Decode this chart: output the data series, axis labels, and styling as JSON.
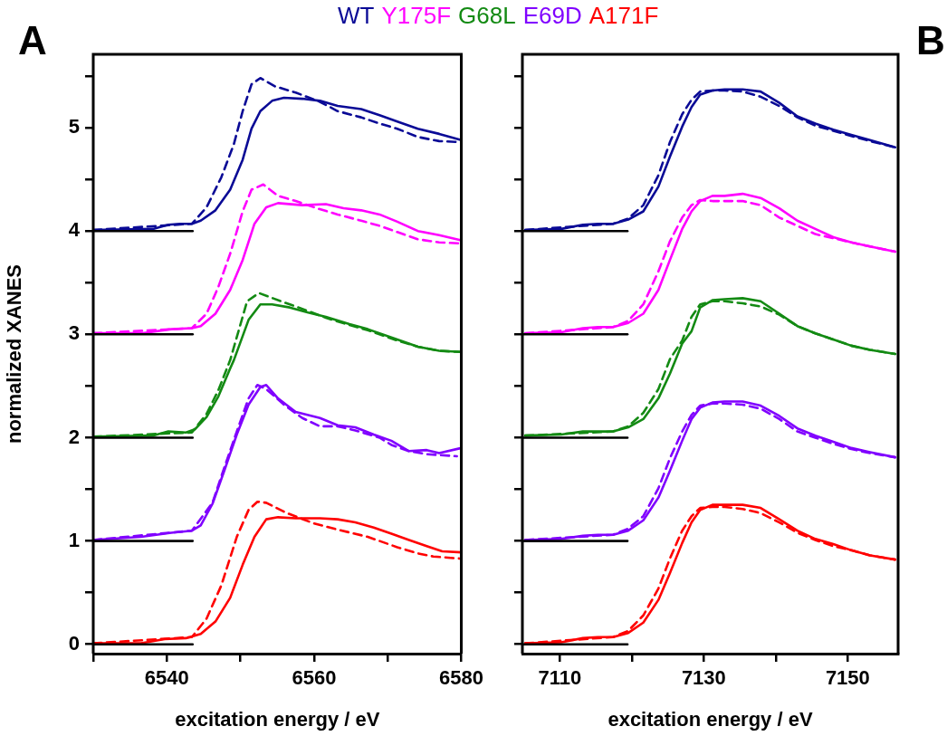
{
  "chart_data": [
    {
      "type": "line",
      "title": "A",
      "xlabel": "excitation energy / eV",
      "ylabel": "normalized XANES",
      "legend": "top",
      "xlim": [
        6530,
        6580
      ],
      "ylim": [
        -0.09,
        5.71
      ],
      "xticks": [
        {
          "value": 6530,
          "label": null
        },
        6540,
        {
          "value": 6550,
          "label": null
        },
        6560,
        {
          "value": 6570,
          "label": null
        },
        6580
      ],
      "yticks": [
        0,
        {
          "value": 0.5,
          "label": null
        },
        1,
        {
          "value": 1.5,
          "label": null
        },
        2,
        {
          "value": 2.5,
          "label": null
        },
        3,
        {
          "value": 3.5,
          "label": null
        },
        4,
        {
          "value": 4.5,
          "label": null
        },
        5,
        {
          "value": 5.5,
          "label": null
        }
      ],
      "series": [
        {
          "color": "#000000",
          "x": [
            6530,
            6543.5
          ],
          "values": [
            0,
            0
          ]
        },
        {
          "color": "#000000",
          "x": [
            6530,
            6543.5
          ],
          "values": [
            1,
            1
          ]
        },
        {
          "color": "#000000",
          "x": [
            6530,
            6543.5
          ],
          "values": [
            2,
            2
          ]
        },
        {
          "color": "#000000",
          "x": [
            6530,
            6543.5
          ],
          "values": [
            3,
            3
          ]
        },
        {
          "color": "#000000",
          "x": [
            6530,
            6543.5
          ],
          "values": [
            4,
            4
          ]
        },
        {
          "name": "WT",
          "color": "#0a0a96",
          "x": [
            6530,
            6538.1,
            6540.2,
            6541.8,
            6543.4,
            6544.6,
            6546.6,
            6548.6,
            6550.3,
            6551.5,
            6552.7,
            6554.3,
            6555.9,
            6558.4,
            6560.8,
            6563.2,
            6566.4,
            6568.9,
            6571.3,
            6574.1,
            6577,
            6580
          ],
          "values": [
            4.01,
            4.02,
            4.06,
            4.07,
            4.07,
            4.1,
            4.2,
            4.4,
            4.69,
            4.99,
            5.16,
            5.26,
            5.29,
            5.28,
            5.26,
            5.21,
            5.18,
            5.12,
            5.06,
            4.99,
            4.94,
            4.88
          ]
        },
        {
          "name": "Y175F",
          "color": "#ff00ff",
          "x": [
            6530,
            6536.5,
            6540.6,
            6543.4,
            6544.6,
            6546.6,
            6548.6,
            6550.3,
            6551.9,
            6553.5,
            6555.1,
            6558.4,
            6561.6,
            6564,
            6566.4,
            6568.9,
            6571.3,
            6574.1,
            6577,
            6580
          ],
          "values": [
            3.01,
            3.01,
            3.05,
            3.06,
            3.08,
            3.2,
            3.43,
            3.72,
            4.07,
            4.23,
            4.27,
            4.25,
            4.26,
            4.22,
            4.2,
            4.16,
            4.09,
            4,
            3.96,
            3.91
          ]
        },
        {
          "name": "G68L",
          "color": "#138a13",
          "x": [
            6530,
            6538.1,
            6540.2,
            6542.6,
            6543.8,
            6545.4,
            6547,
            6548.6,
            6549.1,
            6551.1,
            6552.7,
            6554.3,
            6556.7,
            6559.2,
            6561.6,
            6564.8,
            6567.3,
            6571.3,
            6574.1,
            6577,
            6580
          ],
          "values": [
            2.01,
            2.02,
            2.06,
            2.05,
            2.08,
            2.2,
            2.4,
            2.67,
            2.75,
            3.14,
            3.29,
            3.29,
            3.26,
            3.21,
            3.17,
            3.1,
            3.05,
            2.95,
            2.88,
            2.84,
            2.83
          ]
        },
        {
          "name": "E69D",
          "color": "#8000ff",
          "x": [
            6530,
            6536.5,
            6540.6,
            6543.4,
            6544.6,
            6546.2,
            6547.8,
            6549.5,
            6551.1,
            6552.7,
            6553.5,
            6555.1,
            6557.5,
            6560.8,
            6563.2,
            6565.6,
            6568.1,
            6570.5,
            6572.9,
            6575.3,
            6577,
            6580
          ],
          "values": [
            1.01,
            1.04,
            1.08,
            1.1,
            1.15,
            1.36,
            1.68,
            2.03,
            2.32,
            2.49,
            2.51,
            2.38,
            2.25,
            2.19,
            2.12,
            2.1,
            2.03,
            1.97,
            1.87,
            1.88,
            1.85,
            1.9
          ]
        },
        {
          "name": "A171F",
          "color": "#ff0000",
          "x": [
            6530,
            6536.5,
            6539.7,
            6542.6,
            6544.6,
            6546.6,
            6548.6,
            6550.3,
            6551.9,
            6553.5,
            6555.1,
            6557.5,
            6560.8,
            6563.2,
            6565.6,
            6568.1,
            6570.5,
            6572.9,
            6575.3,
            6577.4,
            6580
          ],
          "values": [
            0.01,
            0.01,
            0.05,
            0.06,
            0.1,
            0.22,
            0.45,
            0.77,
            1.04,
            1.21,
            1.23,
            1.22,
            1.22,
            1.21,
            1.18,
            1.13,
            1.07,
            1.01,
            0.95,
            0.9,
            0.89
          ]
        },
        {
          "color": "#0a0a96",
          "line_style": "dashed",
          "x": [
            6530,
            6543.4,
            6545.4,
            6547.4,
            6549.1,
            6550.3,
            6551.5,
            6552.7,
            6554.7,
            6557.5,
            6560.8,
            6563.2,
            6566.4,
            6568.9,
            6571.3,
            6574.1,
            6577,
            6580
          ],
          "values": [
            4.01,
            4.07,
            4.23,
            4.52,
            4.84,
            5.16,
            5.42,
            5.48,
            5.4,
            5.34,
            5.25,
            5.16,
            5.1,
            5.04,
            4.99,
            4.91,
            4.87,
            4.86
          ]
        },
        {
          "color": "#ff00ff",
          "line_style": "dashed",
          "x": [
            6530,
            6543.4,
            6545.4,
            6547,
            6548.6,
            6550.3,
            6551.5,
            6553.1,
            6555.1,
            6557.5,
            6560.4,
            6563.2,
            6566.4,
            6568.9,
            6571.3,
            6574.1,
            6577,
            6579.8
          ],
          "values": [
            3.01,
            3.06,
            3.2,
            3.46,
            3.78,
            4.19,
            4.4,
            4.45,
            4.34,
            4.29,
            4.22,
            4.16,
            4.1,
            4.05,
            3.99,
            3.92,
            3.89,
            3.88
          ]
        },
        {
          "color": "#138a13",
          "line_style": "dashed",
          "x": [
            6530,
            6543.4,
            6545.4,
            6547,
            6548.6,
            6550.9,
            6552.5,
            6555.5,
            6557.9,
            6561.6,
            6564.8,
            6567.3,
            6571.3,
            6574.1,
            6577,
            6580
          ],
          "values": [
            2.01,
            2.05,
            2.23,
            2.46,
            2.75,
            3.32,
            3.4,
            3.32,
            3.26,
            3.16,
            3.09,
            3.04,
            2.94,
            2.88,
            2.84,
            2.83
          ]
        },
        {
          "color": "#8000ff",
          "line_style": "dashed",
          "x": [
            6530,
            6543.4,
            6546.2,
            6547.8,
            6549.5,
            6551.1,
            6552.3,
            6553.5,
            6555.9,
            6558.4,
            6560.8,
            6563.2,
            6565.6,
            6568.9,
            6570.5,
            6572.9,
            6575.3,
            6579.4
          ],
          "values": [
            1.01,
            1.1,
            1.37,
            1.71,
            2.06,
            2.38,
            2.51,
            2.47,
            2.32,
            2.19,
            2.11,
            2.11,
            2.07,
            2,
            1.93,
            1.87,
            1.84,
            1.82
          ]
        },
        {
          "color": "#ff0000",
          "line_style": "dashed",
          "x": [
            6530,
            6543.4,
            6545.4,
            6547.4,
            6549.5,
            6551.1,
            6552.3,
            6553.5,
            6556.3,
            6560,
            6563.2,
            6567.3,
            6571.3,
            6574.1,
            6576.2,
            6579.8
          ],
          "values": [
            0.01,
            0.07,
            0.25,
            0.57,
            1.04,
            1.3,
            1.38,
            1.37,
            1.27,
            1.17,
            1.11,
            1.04,
            0.94,
            0.88,
            0.85,
            0.83
          ]
        }
      ]
    },
    {
      "type": "line",
      "title": "B",
      "xlabel": "excitation energy / eV",
      "tick_labels": "x",
      "xlim": [
        7104.8,
        7157
      ],
      "ylim": [
        -0.09,
        5.71
      ],
      "xticks": [
        7110,
        {
          "value": 7120,
          "label": null
        },
        7130,
        {
          "value": 7140,
          "label": null
        },
        7150
      ],
      "yticks": [
        0,
        {
          "value": 0.5,
          "label": null
        },
        1,
        {
          "value": 1.5,
          "label": null
        },
        2,
        {
          "value": 2.5,
          "label": null
        },
        3,
        {
          "value": 3.5,
          "label": null
        },
        4,
        {
          "value": 4.5,
          "label": null
        },
        5,
        {
          "value": 5.5,
          "label": null
        }
      ],
      "series": [
        {
          "color": "#000000",
          "x": [
            7104.8,
            7119.4
          ],
          "values": [
            0,
            0
          ]
        },
        {
          "color": "#000000",
          "x": [
            7104.8,
            7119.4
          ],
          "values": [
            1,
            1
          ]
        },
        {
          "color": "#000000",
          "x": [
            7104.8,
            7119.4
          ],
          "values": [
            2,
            2
          ]
        },
        {
          "color": "#000000",
          "x": [
            7104.8,
            7119.4
          ],
          "values": [
            3,
            3
          ]
        },
        {
          "color": "#000000",
          "x": [
            7104.8,
            7119.4
          ],
          "values": [
            4,
            4
          ]
        },
        {
          "color": "#0a0a96",
          "x": [
            7105.2,
            7110.2,
            7113.2,
            7115.3,
            7117.4,
            7119.5,
            7121.6,
            7123.7,
            7125.3,
            7127,
            7128.3,
            7129.5,
            7131.2,
            7132.9,
            7135.4,
            7137.9,
            7140.5,
            7143,
            7145.5,
            7148,
            7150.5,
            7153.1,
            7156.6
          ],
          "values": [
            4.01,
            4.02,
            4.06,
            4.07,
            4.07,
            4.11,
            4.19,
            4.43,
            4.72,
            5.01,
            5.2,
            5.32,
            5.36,
            5.37,
            5.37,
            5.35,
            5.24,
            5.11,
            5.04,
            4.98,
            4.93,
            4.88,
            4.81
          ]
        },
        {
          "color": "#ff00ff",
          "x": [
            7105.2,
            7110.2,
            7113.2,
            7115.3,
            7117.4,
            7119.5,
            7121.6,
            7123.7,
            7125.3,
            7127,
            7128.3,
            7129.5,
            7131.2,
            7132.9,
            7135.4,
            7137.9,
            7140.5,
            7143,
            7145.5,
            7148,
            7150.5,
            7153.1,
            7156.6
          ],
          "values": [
            3.01,
            3.02,
            3.06,
            3.07,
            3.07,
            3.11,
            3.2,
            3.43,
            3.72,
            4.02,
            4.19,
            4.29,
            4.34,
            4.34,
            4.36,
            4.32,
            4.22,
            4.1,
            4.02,
            3.94,
            3.89,
            3.85,
            3.8
          ]
        },
        {
          "color": "#138a13",
          "x": [
            7105.2,
            7110.2,
            7113.2,
            7115.3,
            7117.4,
            7119.5,
            7121.6,
            7123.7,
            7125.3,
            7127,
            7128.3,
            7129.5,
            7131.2,
            7132.9,
            7135.4,
            7137.9,
            7140.5,
            7143,
            7145.5,
            7148,
            7150.5,
            7153.1,
            7156.6
          ],
          "values": [
            2.02,
            2.03,
            2.06,
            2.06,
            2.06,
            2.1,
            2.18,
            2.38,
            2.62,
            2.91,
            3.03,
            3.26,
            3.33,
            3.34,
            3.35,
            3.32,
            3.2,
            3.08,
            3.01,
            2.95,
            2.89,
            2.85,
            2.81
          ]
        },
        {
          "color": "#8000ff",
          "x": [
            7105.2,
            7110.2,
            7113.2,
            7115.3,
            7117.4,
            7119.5,
            7121.6,
            7123.7,
            7125.3,
            7127,
            7128.3,
            7129.5,
            7131.2,
            7132.9,
            7135.4,
            7137.9,
            7140.5,
            7143,
            7145.5,
            7148,
            7150.5,
            7153.1,
            7156.6
          ],
          "values": [
            1.01,
            1.02,
            1.05,
            1.06,
            1.06,
            1.1,
            1.2,
            1.42,
            1.68,
            1.97,
            2.18,
            2.29,
            2.34,
            2.35,
            2.35,
            2.31,
            2.21,
            2.09,
            2.02,
            1.96,
            1.9,
            1.86,
            1.81
          ]
        },
        {
          "color": "#ff0000",
          "x": [
            7105.2,
            7110.2,
            7113.2,
            7115.3,
            7117.4,
            7119.5,
            7121.6,
            7123.7,
            7125.3,
            7127,
            7128.3,
            7129.5,
            7131.2,
            7132.9,
            7135.4,
            7137.9,
            7140.5,
            7143,
            7145.5,
            7148,
            7150.5,
            7153.1,
            7156.6
          ],
          "values": [
            0.01,
            0.02,
            0.06,
            0.07,
            0.07,
            0.11,
            0.21,
            0.43,
            0.69,
            0.98,
            1.18,
            1.3,
            1.35,
            1.35,
            1.35,
            1.32,
            1.21,
            1.1,
            1.02,
            0.97,
            0.91,
            0.86,
            0.82
          ]
        },
        {
          "color": "#0a0a96",
          "line_style": "dashed",
          "x": [
            7105.2,
            7117.4,
            7119.5,
            7121.6,
            7123.7,
            7125.3,
            7127,
            7128.3,
            7129.5,
            7131.2,
            7132.9,
            7135.4,
            7137.9,
            7140.5,
            7143,
            7145.5,
            7148,
            7150.5,
            7153.1,
            7156.6
          ],
          "values": [
            4.01,
            4.07,
            4.12,
            4.25,
            4.54,
            4.86,
            5.13,
            5.27,
            5.35,
            5.36,
            5.36,
            5.35,
            5.3,
            5.21,
            5.1,
            5.02,
            4.97,
            4.92,
            4.87,
            4.81
          ]
        },
        {
          "color": "#ff00ff",
          "line_style": "dashed",
          "x": [
            7105.2,
            7117.4,
            7119.5,
            7121.6,
            7123.7,
            7125.3,
            7127,
            7128.3,
            7129.5,
            7131.2,
            7132.9,
            7135.4,
            7137.9,
            7140.5,
            7143,
            7145.5,
            7148,
            7150.5,
            7153.1,
            7156.6
          ],
          "values": [
            3.01,
            3.07,
            3.13,
            3.29,
            3.61,
            3.9,
            4.13,
            4.25,
            4.3,
            4.29,
            4.29,
            4.29,
            4.25,
            4.13,
            4.05,
            3.97,
            3.93,
            3.89,
            3.85,
            3.8
          ]
        },
        {
          "color": "#138a13",
          "line_style": "dashed",
          "x": [
            7105.2,
            7117.4,
            7119.5,
            7121.6,
            7123.7,
            7125.3,
            7127,
            7128.3,
            7129.5,
            7131.2,
            7132.9,
            7135.4,
            7137.9,
            7140.5,
            7143,
            7145.5,
            7148,
            7150.5,
            7153.1,
            7156.6
          ],
          "values": [
            2.02,
            2.06,
            2.11,
            2.24,
            2.47,
            2.76,
            2.94,
            3.17,
            3.29,
            3.32,
            3.32,
            3.3,
            3.27,
            3.19,
            3.08,
            3.01,
            2.95,
            2.89,
            2.85,
            2.81
          ]
        },
        {
          "color": "#8000ff",
          "line_style": "dashed",
          "x": [
            7105.2,
            7117.4,
            7119.5,
            7121.6,
            7123.7,
            7125.3,
            7127,
            7128.3,
            7129.5,
            7131.2,
            7132.9,
            7135.4,
            7137.9,
            7140.5,
            7143,
            7145.5,
            7148,
            7150.5,
            7153.1,
            7156.6
          ],
          "values": [
            1.01,
            1.06,
            1.12,
            1.24,
            1.51,
            1.8,
            2.06,
            2.22,
            2.31,
            2.33,
            2.33,
            2.32,
            2.28,
            2.18,
            2.06,
            2,
            1.94,
            1.89,
            1.85,
            1.81
          ]
        },
        {
          "color": "#ff0000",
          "line_style": "dashed",
          "x": [
            7105.2,
            7117.4,
            7119.5,
            7121.6,
            7123.7,
            7125.3,
            7127,
            7128.3,
            7129.5,
            7131.2,
            7132.9,
            7135.4,
            7137.9,
            7140.5,
            7143,
            7145.5,
            7148,
            7150.5,
            7153.1,
            7156.6
          ],
          "values": [
            0.01,
            0.07,
            0.13,
            0.28,
            0.54,
            0.83,
            1.1,
            1.24,
            1.32,
            1.33,
            1.33,
            1.31,
            1.27,
            1.18,
            1.08,
            1.01,
            0.95,
            0.91,
            0.86,
            0.82
          ]
        }
      ]
    }
  ]
}
